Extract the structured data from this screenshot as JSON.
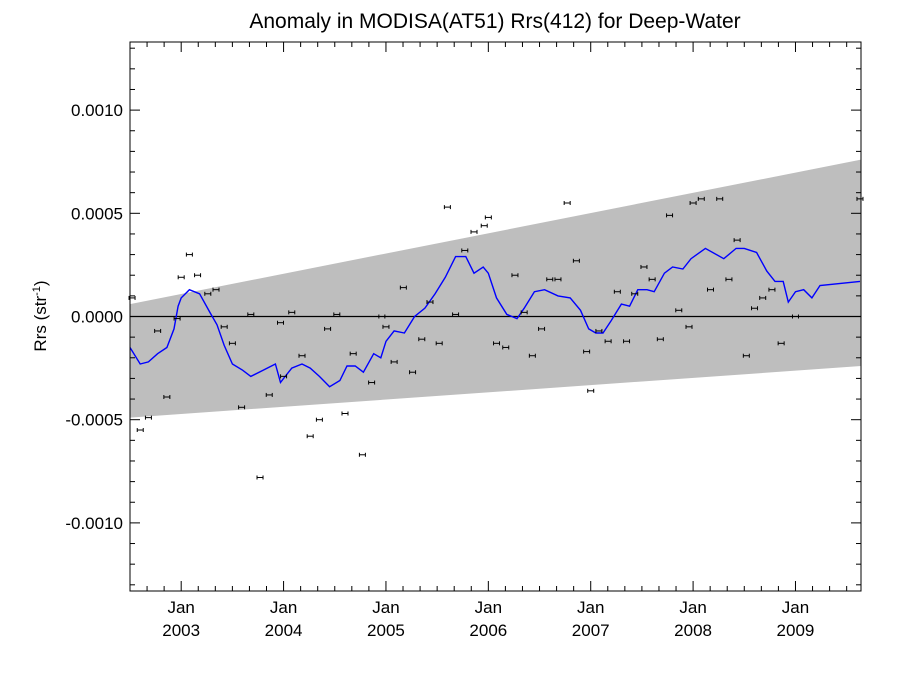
{
  "chart_data": {
    "type": "line",
    "title": "Anomaly in MODISA(AT51) Rrs(412) for Deep-Water",
    "ylabel": "Rrs (str",
    "ylabel_sup": "-1",
    "ylabel_close": ")",
    "xlim": [
      2002.5,
      2009.64
    ],
    "ylim": [
      -0.00133,
      0.00133
    ],
    "grid": false,
    "yticks": [
      {
        "value": 0.001,
        "label": "0.0010"
      },
      {
        "value": 0.0005,
        "label": "0.0005"
      },
      {
        "value": 0.0,
        "label": "0.0000"
      },
      {
        "value": -0.0005,
        "label": "-0.0005"
      },
      {
        "value": -0.001,
        "label": "-0.0010"
      }
    ],
    "xticks": [
      {
        "value": 2003.0,
        "month": "Jan",
        "year": "2003"
      },
      {
        "value": 2004.0,
        "month": "Jan",
        "year": "2004"
      },
      {
        "value": 2005.0,
        "month": "Jan",
        "year": "2005"
      },
      {
        "value": 2006.0,
        "month": "Jan",
        "year": "2006"
      },
      {
        "value": 2007.0,
        "month": "Jan",
        "year": "2007"
      },
      {
        "value": 2008.0,
        "month": "Jan",
        "year": "2008"
      },
      {
        "value": 2009.0,
        "month": "Jan",
        "year": "2009"
      }
    ],
    "band": {
      "color": "#bebebe",
      "start": {
        "x": 2002.5,
        "upper": 6e-05,
        "lower": -0.00049
      },
      "end": {
        "x": 2009.64,
        "upper": 0.00076,
        "lower": -0.00024
      }
    },
    "zero_line": 0.0,
    "points": [
      {
        "x": 2002.52,
        "y": 9e-05
      },
      {
        "x": 2002.6,
        "y": -0.00055
      },
      {
        "x": 2002.68,
        "y": -0.00049
      },
      {
        "x": 2002.77,
        "y": -7e-05
      },
      {
        "x": 2002.86,
        "y": -0.00039
      },
      {
        "x": 2002.96,
        "y": -1e-05
      },
      {
        "x": 2003.0,
        "y": 0.00019
      },
      {
        "x": 2003.08,
        "y": 0.0003
      },
      {
        "x": 2003.16,
        "y": 0.0002
      },
      {
        "x": 2003.26,
        "y": 0.00011
      },
      {
        "x": 2003.34,
        "y": 0.00013
      },
      {
        "x": 2003.42,
        "y": -5e-05
      },
      {
        "x": 2003.5,
        "y": -0.00013
      },
      {
        "x": 2003.59,
        "y": -0.00044
      },
      {
        "x": 2003.68,
        "y": 1e-05
      },
      {
        "x": 2003.77,
        "y": -0.00078
      },
      {
        "x": 2003.86,
        "y": -0.00038
      },
      {
        "x": 2003.97,
        "y": -3e-05
      },
      {
        "x": 2004.0,
        "y": -0.00029
      },
      {
        "x": 2004.08,
        "y": 2e-05
      },
      {
        "x": 2004.18,
        "y": -0.00019
      },
      {
        "x": 2004.26,
        "y": -0.00058
      },
      {
        "x": 2004.35,
        "y": -0.0005
      },
      {
        "x": 2004.43,
        "y": -6e-05
      },
      {
        "x": 2004.52,
        "y": 1e-05
      },
      {
        "x": 2004.6,
        "y": -0.00047
      },
      {
        "x": 2004.68,
        "y": -0.00018
      },
      {
        "x": 2004.77,
        "y": -0.00067
      },
      {
        "x": 2004.86,
        "y": -0.00032
      },
      {
        "x": 2004.96,
        "y": 0.0
      },
      {
        "x": 2005.0,
        "y": -5e-05
      },
      {
        "x": 2005.08,
        "y": -0.00022
      },
      {
        "x": 2005.17,
        "y": 0.00014
      },
      {
        "x": 2005.26,
        "y": -0.00027
      },
      {
        "x": 2005.35,
        "y": -0.00011
      },
      {
        "x": 2005.43,
        "y": 7e-05
      },
      {
        "x": 2005.52,
        "y": -0.00013
      },
      {
        "x": 2005.6,
        "y": 0.00053
      },
      {
        "x": 2005.68,
        "y": 1e-05
      },
      {
        "x": 2005.77,
        "y": 0.00032
      },
      {
        "x": 2005.86,
        "y": 0.00041
      },
      {
        "x": 2005.96,
        "y": 0.00044
      },
      {
        "x": 2006.0,
        "y": 0.00048
      },
      {
        "x": 2006.08,
        "y": -0.00013
      },
      {
        "x": 2006.17,
        "y": -0.00015
      },
      {
        "x": 2006.26,
        "y": 0.0002
      },
      {
        "x": 2006.35,
        "y": 2e-05
      },
      {
        "x": 2006.43,
        "y": -0.00019
      },
      {
        "x": 2006.52,
        "y": -6e-05
      },
      {
        "x": 2006.6,
        "y": 0.00018
      },
      {
        "x": 2006.68,
        "y": 0.00018
      },
      {
        "x": 2006.77,
        "y": 0.00055
      },
      {
        "x": 2006.86,
        "y": 0.00027
      },
      {
        "x": 2006.96,
        "y": -0.00017
      },
      {
        "x": 2007.0,
        "y": -0.00036
      },
      {
        "x": 2007.08,
        "y": -7e-05
      },
      {
        "x": 2007.17,
        "y": -0.00012
      },
      {
        "x": 2007.26,
        "y": 0.00012
      },
      {
        "x": 2007.35,
        "y": -0.00012
      },
      {
        "x": 2007.43,
        "y": 0.00011
      },
      {
        "x": 2007.52,
        "y": 0.00024
      },
      {
        "x": 2007.6,
        "y": 0.00018
      },
      {
        "x": 2007.68,
        "y": -0.00011
      },
      {
        "x": 2007.77,
        "y": 0.00049
      },
      {
        "x": 2007.86,
        "y": 3e-05
      },
      {
        "x": 2007.96,
        "y": -5e-05
      },
      {
        "x": 2008.0,
        "y": 0.00055
      },
      {
        "x": 2008.08,
        "y": 0.00057
      },
      {
        "x": 2008.17,
        "y": 0.00013
      },
      {
        "x": 2008.26,
        "y": 0.00057
      },
      {
        "x": 2008.35,
        "y": 0.00018
      },
      {
        "x": 2008.43,
        "y": 0.00037
      },
      {
        "x": 2008.52,
        "y": -0.00019
      },
      {
        "x": 2008.6,
        "y": 4e-05
      },
      {
        "x": 2008.68,
        "y": 9e-05
      },
      {
        "x": 2008.77,
        "y": 0.00013
      },
      {
        "x": 2008.86,
        "y": -0.00013
      },
      {
        "x": 2009.0,
        "y": 0.0
      },
      {
        "x": 2009.63,
        "y": 0.00057
      }
    ],
    "series": [
      {
        "color": "#0000ff",
        "x": [
          2002.5,
          2002.6,
          2002.68,
          2002.77,
          2002.86,
          2002.93,
          2002.97,
          2003.0,
          2003.08,
          2003.18,
          2003.28,
          2003.35,
          2003.42,
          2003.5,
          2003.6,
          2003.68,
          2003.8,
          2003.92,
          2003.97,
          2004.0,
          2004.08,
          2004.18,
          2004.26,
          2004.35,
          2004.45,
          2004.55,
          2004.62,
          2004.7,
          2004.78,
          2004.88,
          2004.95,
          2005.0,
          2005.08,
          2005.18,
          2005.28,
          2005.38,
          2005.48,
          2005.58,
          2005.68,
          2005.78,
          2005.86,
          2005.95,
          2006.0,
          2006.08,
          2006.18,
          2006.28,
          2006.35,
          2006.45,
          2006.55,
          2006.68,
          2006.8,
          2006.9,
          2006.98,
          2007.05,
          2007.12,
          2007.2,
          2007.3,
          2007.38,
          2007.46,
          2007.55,
          2007.62,
          2007.72,
          2007.8,
          2007.9,
          2007.98,
          2008.12,
          2008.3,
          2008.42,
          2008.5,
          2008.62,
          2008.72,
          2008.8,
          2008.88,
          2008.93,
          2009.0,
          2009.08,
          2009.16,
          2009.24,
          2009.63
        ],
        "y": [
          -0.00015,
          -0.00023,
          -0.00022,
          -0.00018,
          -0.00015,
          -6e-05,
          5e-05,
          9e-05,
          0.00013,
          0.00011,
          2e-05,
          -4e-05,
          -0.00014,
          -0.00023,
          -0.00026,
          -0.00029,
          -0.00026,
          -0.00023,
          -0.00032,
          -0.0003,
          -0.00025,
          -0.00023,
          -0.00025,
          -0.00029,
          -0.00034,
          -0.00031,
          -0.00024,
          -0.00024,
          -0.00027,
          -0.00018,
          -0.0002,
          -0.00012,
          -7e-05,
          -8e-05,
          0.0,
          4e-05,
          0.00011,
          0.00019,
          0.00029,
          0.00029,
          0.00021,
          0.00024,
          0.00021,
          9e-05,
          1e-05,
          -1e-05,
          4e-05,
          0.00012,
          0.00013,
          0.0001,
          9e-05,
          3e-05,
          -6e-05,
          -8e-05,
          -8e-05,
          -2e-05,
          6e-05,
          5e-05,
          0.00013,
          0.00013,
          0.00012,
          0.00021,
          0.00024,
          0.00023,
          0.00028,
          0.00033,
          0.00028,
          0.00033,
          0.00033,
          0.00031,
          0.00022,
          0.00017,
          0.00017,
          7e-05,
          0.00012,
          0.00013,
          9e-05,
          0.00015,
          0.00017
        ]
      }
    ]
  }
}
